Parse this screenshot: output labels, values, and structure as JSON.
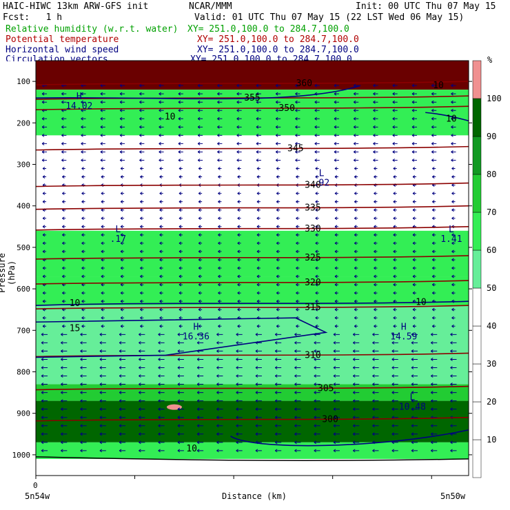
{
  "header": {
    "title": "HAIC-HIWC 13km ARW-GFS init",
    "center": "NCAR/MMM",
    "init": "Init: 00 UTC Thu 07 May 15",
    "fcst": "Fcst:   1 h",
    "valid": "Valid: 01 UTC Thu 07 May 15 (22 LST Wed 06 May 15)"
  },
  "fields": [
    {
      "name": "Relative humidity (w.r.t. water)",
      "xy": "XY= 251.0,100.0 to 284.7,100.0",
      "color": "#00a000"
    },
    {
      "name": "Potential temperature",
      "xy": "XY= 251.0,100.0 to 284.7,100.0",
      "color": "#b00000"
    },
    {
      "name": "Horizontal wind speed",
      "xy": "XY= 251.0,100.0 to 284.7,100.0",
      "color": "#000080"
    },
    {
      "name": "Circulation vectors",
      "xy": "XY= 251.0,100.0 to 284.7,100.0",
      "color": "#000080"
    }
  ],
  "chart_data": {
    "type": "heatmap",
    "ylabel": "Pressure (hPa)",
    "xlabel": "Distance (km)",
    "x_tick_label": "0",
    "x_left_label": "5n54w",
    "x_right_label": "5n50w",
    "y_ticks": [
      100,
      200,
      300,
      400,
      500,
      600,
      700,
      800,
      900,
      1000
    ],
    "ylim": [
      50,
      1050
    ],
    "colorbar": {
      "unit": "%",
      "ticks": [
        10,
        20,
        30,
        40,
        50,
        60,
        70,
        80,
        90,
        100
      ],
      "colors": [
        "#ffffff",
        "#ffffff",
        "#ffffff",
        "#ffffff",
        "#ffffff",
        "#66ee99",
        "#33ee55",
        "#22cc33",
        "#119922",
        "#006600",
        "#f09090"
      ]
    },
    "theta_contours": [
      {
        "label": "360",
        "p": 105,
        "lx": 0.62
      },
      {
        "label": "355",
        "p": 140,
        "lx": 0.5
      },
      {
        "label": "350",
        "p": 165,
        "lx": 0.58
      },
      {
        "label": "345",
        "p": 262,
        "lx": 0.6
      },
      {
        "label": "340",
        "p": 350,
        "lx": 0.64
      },
      {
        "label": "335",
        "p": 405,
        "lx": 0.64
      },
      {
        "label": "330",
        "p": 455,
        "lx": 0.64
      },
      {
        "label": "325",
        "p": 525,
        "lx": 0.64
      },
      {
        "label": "320",
        "p": 585,
        "lx": 0.64
      },
      {
        "label": "315",
        "p": 645,
        "lx": 0.64
      },
      {
        "label": "310",
        "p": 760,
        "lx": 0.64
      },
      {
        "label": "305",
        "p": 840,
        "lx": 0.67
      },
      {
        "label": "300",
        "p": 915,
        "lx": 0.68
      }
    ],
    "speed_labels": [
      {
        "label": "10",
        "x": 0.31,
        "p": 185
      },
      {
        "label": "10",
        "x": 0.96,
        "p": 190
      },
      {
        "label": "10",
        "x": 0.93,
        "p": 110
      },
      {
        "label": "10",
        "x": 0.09,
        "p": 635
      },
      {
        "label": "10",
        "x": 0.89,
        "p": 632
      },
      {
        "label": "15",
        "x": 0.09,
        "p": 695
      },
      {
        "label": "10",
        "x": 0.36,
        "p": 985
      }
    ],
    "extrema": [
      {
        "type": "H",
        "value": "14.02",
        "x": 0.1,
        "p": 150
      },
      {
        "type": "L",
        "value": ".92",
        "x": 0.66,
        "p": 335
      },
      {
        "type": "L",
        "value": ".17",
        "x": 0.19,
        "p": 470
      },
      {
        "type": "L",
        "value": "1.41",
        "x": 0.96,
        "p": 470
      },
      {
        "type": "H",
        "value": "16.36",
        "x": 0.37,
        "p": 705
      },
      {
        "type": "H",
        "value": "14.59",
        "x": 0.85,
        "p": 705
      },
      {
        "type": "L",
        "value": "10.48",
        "x": 0.87,
        "p": 875
      }
    ]
  }
}
